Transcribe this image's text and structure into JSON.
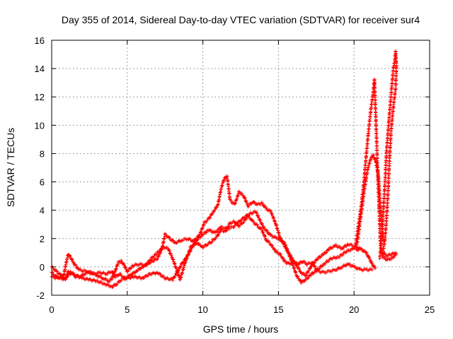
{
  "chart_data": {
    "type": "scatter",
    "title": "Day 355 of 2014, Sidereal Day-to-day VTEC variation (SDTVAR) for receiver sur4",
    "xlabel": "GPS time / hours",
    "ylabel": "SDTVAR / TECUs",
    "xlim": [
      0,
      25
    ],
    "ylim": [
      -2,
      16
    ],
    "xticks": [
      0,
      5,
      10,
      15,
      20,
      25
    ],
    "yticks": [
      -2,
      0,
      2,
      4,
      6,
      8,
      10,
      12,
      14,
      16
    ],
    "grid": true,
    "marker": "+",
    "color": "#ff0000",
    "series": [
      {
        "name": "sur4",
        "tracks": [
          [
            [
              0,
              0.0
            ],
            [
              0.3,
              -0.3
            ],
            [
              0.6,
              -0.6
            ],
            [
              0.8,
              -0.8
            ],
            [
              1.0,
              -0.7
            ],
            [
              1.3,
              -0.4
            ],
            [
              1.6,
              -0.6
            ],
            [
              2.0,
              -0.8
            ],
            [
              2.5,
              -0.9
            ],
            [
              3.0,
              -1.0
            ],
            [
              3.5,
              -1.2
            ],
            [
              4.0,
              -1.4
            ],
            [
              4.3,
              -1.2
            ],
            [
              4.6,
              -0.9
            ],
            [
              5.0,
              -0.8
            ],
            [
              5.5,
              -0.7
            ],
            [
              6.0,
              -0.8
            ],
            [
              6.5,
              -0.5
            ],
            [
              7.0,
              -0.4
            ],
            [
              7.5,
              -0.8
            ],
            [
              8.0,
              -0.9
            ],
            [
              8.3,
              -0.4
            ],
            [
              8.6,
              0.2
            ],
            [
              9.0,
              0.8
            ],
            [
              9.3,
              1.4
            ],
            [
              9.6,
              1.9
            ],
            [
              10.0,
              2.3
            ],
            [
              10.4,
              2.6
            ],
            [
              10.8,
              2.4
            ],
            [
              11.2,
              2.8
            ],
            [
              11.6,
              2.7
            ],
            [
              12.0,
              2.8
            ],
            [
              12.5,
              3.3
            ],
            [
              13.0,
              3.7
            ],
            [
              13.5,
              3.9
            ],
            [
              14.0,
              2.8
            ],
            [
              14.5,
              2.2
            ],
            [
              15.0,
              2.0
            ],
            [
              15.4,
              1.7
            ],
            [
              15.8,
              0.6
            ],
            [
              16.2,
              -0.6
            ],
            [
              16.5,
              -1.1
            ],
            [
              16.8,
              -0.9
            ],
            [
              17.2,
              -0.5
            ],
            [
              17.6,
              -0.2
            ],
            [
              18.0,
              0.2
            ],
            [
              18.5,
              0.6
            ],
            [
              19.0,
              0.7
            ],
            [
              19.5,
              1.1
            ],
            [
              20.0,
              1.3
            ],
            [
              20.3,
              1.2
            ]
          ],
          [
            [
              0,
              -0.4
            ],
            [
              0.3,
              -0.7
            ],
            [
              0.6,
              -0.8
            ],
            [
              0.9,
              -0.9
            ],
            [
              1.1,
              -0.3
            ],
            [
              1.3,
              -0.4
            ],
            [
              1.6,
              -0.7
            ],
            [
              2.0,
              -0.6
            ],
            [
              2.4,
              -0.4
            ],
            [
              2.8,
              -0.5
            ],
            [
              3.2,
              -0.4
            ],
            [
              3.6,
              -0.5
            ],
            [
              4.0,
              -0.3
            ],
            [
              4.2,
              -0.7
            ],
            [
              4.5,
              -0.5
            ],
            [
              4.8,
              -0.8
            ],
            [
              5.2,
              -0.6
            ],
            [
              5.6,
              -0.3
            ],
            [
              6.0,
              0.0
            ],
            [
              6.5,
              0.3
            ],
            [
              7.0,
              0.6
            ],
            [
              7.3,
              1.3
            ],
            [
              7.5,
              2.3
            ],
            [
              7.8,
              2.0
            ],
            [
              8.2,
              1.7
            ],
            [
              8.6,
              1.9
            ],
            [
              9.0,
              2.0
            ],
            [
              9.4,
              1.8
            ],
            [
              9.8,
              2.3
            ],
            [
              10.1,
              3.1
            ],
            [
              10.4,
              3.4
            ],
            [
              10.7,
              3.9
            ],
            [
              11.0,
              4.4
            ],
            [
              11.2,
              5.5
            ],
            [
              11.4,
              6.2
            ],
            [
              11.6,
              6.4
            ],
            [
              11.8,
              4.7
            ],
            [
              12.1,
              4.4
            ],
            [
              12.4,
              5.3
            ],
            [
              12.7,
              5.0
            ],
            [
              13.0,
              4.3
            ],
            [
              13.3,
              4.6
            ],
            [
              13.6,
              4.4
            ],
            [
              13.9,
              4.5
            ],
            [
              14.2,
              4.1
            ],
            [
              14.5,
              3.9
            ],
            [
              14.8,
              3.1
            ],
            [
              15.1,
              2.1
            ],
            [
              15.3,
              1.7
            ],
            [
              15.6,
              1.1
            ],
            [
              15.9,
              0.6
            ],
            [
              16.2,
              0.1
            ],
            [
              16.5,
              -0.4
            ],
            [
              16.8,
              -0.6
            ],
            [
              17.2,
              0.1
            ],
            [
              17.6,
              0.6
            ],
            [
              18.0,
              0.9
            ],
            [
              18.4,
              1.3
            ],
            [
              18.8,
              1.5
            ],
            [
              19.2,
              1.3
            ],
            [
              19.6,
              1.6
            ],
            [
              20.0,
              1.5
            ],
            [
              20.4,
              1.3
            ],
            [
              20.8,
              1.0
            ],
            [
              21.0,
              0.6
            ],
            [
              21.2,
              0.2
            ],
            [
              21.4,
              -0.1
            ]
          ],
          [
            [
              0,
              -0.7
            ],
            [
              0.4,
              -0.8
            ],
            [
              0.8,
              -0.6
            ],
            [
              1.0,
              0.5
            ],
            [
              1.1,
              0.9
            ],
            [
              1.3,
              0.6
            ],
            [
              1.5,
              0.2
            ],
            [
              1.8,
              -0.2
            ],
            [
              2.2,
              -0.3
            ],
            [
              2.6,
              -0.4
            ],
            [
              3.0,
              -0.6
            ],
            [
              3.4,
              -0.8
            ],
            [
              3.8,
              -1.0
            ],
            [
              4.0,
              -0.8
            ],
            [
              4.2,
              -0.3
            ],
            [
              4.4,
              0.3
            ],
            [
              4.6,
              0.4
            ],
            [
              4.8,
              0.1
            ],
            [
              5.0,
              -0.3
            ],
            [
              5.4,
              0.1
            ],
            [
              5.8,
              0.2
            ],
            [
              6.2,
              0.1
            ],
            [
              6.6,
              0.6
            ],
            [
              7.0,
              1.0
            ],
            [
              7.4,
              1.4
            ],
            [
              7.7,
              1.3
            ],
            [
              8.0,
              0.6
            ],
            [
              8.3,
              -0.3
            ],
            [
              8.5,
              -0.9
            ],
            [
              8.8,
              0.2
            ],
            [
              9.2,
              1.4
            ],
            [
              9.6,
              1.7
            ],
            [
              10.0,
              1.4
            ],
            [
              10.3,
              1.6
            ],
            [
              10.6,
              1.8
            ],
            [
              10.9,
              2.1
            ],
            [
              11.2,
              2.6
            ],
            [
              11.5,
              2.5
            ],
            [
              11.8,
              3.1
            ],
            [
              12.1,
              3.2
            ],
            [
              12.4,
              2.9
            ],
            [
              12.7,
              3.2
            ],
            [
              13.0,
              3.6
            ],
            [
              13.3,
              3.2
            ],
            [
              13.6,
              2.9
            ],
            [
              13.9,
              2.6
            ],
            [
              14.2,
              1.9
            ],
            [
              14.5,
              1.6
            ],
            [
              14.8,
              1.1
            ],
            [
              15.1,
              0.9
            ],
            [
              15.4,
              0.4
            ],
            [
              15.7,
              0.2
            ],
            [
              16.0,
              0.3
            ],
            [
              16.3,
              0.2
            ],
            [
              16.6,
              0.4
            ],
            [
              16.9,
              0.2
            ],
            [
              17.2,
              0.3
            ],
            [
              17.6,
              -0.3
            ],
            [
              18.0,
              -0.4
            ],
            [
              18.4,
              -0.3
            ],
            [
              18.8,
              -0.2
            ],
            [
              19.2,
              0.0
            ],
            [
              19.6,
              0.2
            ],
            [
              20.0,
              0.0
            ],
            [
              20.4,
              -0.2
            ],
            [
              20.8,
              -0.2
            ],
            [
              21.2,
              -0.2
            ]
          ],
          [
            [
              20.1,
              1.5
            ],
            [
              20.3,
              3.0
            ],
            [
              20.5,
              4.5
            ],
            [
              20.65,
              6.0
            ],
            [
              20.8,
              7.8
            ],
            [
              20.95,
              9.5
            ],
            [
              21.1,
              11.0
            ],
            [
              21.25,
              12.2
            ],
            [
              21.35,
              13.2
            ],
            [
              21.45,
              10.2
            ],
            [
              21.55,
              7.2
            ],
            [
              21.65,
              4.3
            ],
            [
              21.75,
              1.6
            ],
            [
              21.9,
              0.7
            ],
            [
              22.2,
              0.5
            ],
            [
              22.5,
              0.6
            ],
            [
              22.8,
              0.9
            ]
          ],
          [
            [
              20.2,
              1.6
            ],
            [
              20.35,
              2.8
            ],
            [
              20.5,
              4.0
            ],
            [
              20.65,
              5.2
            ],
            [
              20.8,
              6.3
            ],
            [
              20.95,
              7.1
            ],
            [
              21.1,
              7.6
            ],
            [
              21.25,
              7.9
            ],
            [
              21.45,
              7.4
            ],
            [
              21.6,
              6.5
            ],
            [
              21.7,
              5.0
            ],
            [
              21.8,
              3.4
            ],
            [
              21.9,
              2.2
            ],
            [
              22.0,
              1.6
            ]
          ],
          [
            [
              21.7,
              0.6
            ],
            [
              21.85,
              2.3
            ],
            [
              21.95,
              4.2
            ],
            [
              22.05,
              6.0
            ],
            [
              22.15,
              8.2
            ],
            [
              22.3,
              10.3
            ],
            [
              22.4,
              11.5
            ],
            [
              22.5,
              12.8
            ],
            [
              22.6,
              14.0
            ],
            [
              22.7,
              14.6
            ],
            [
              22.75,
              15.2
            ],
            [
              22.8,
              14.2
            ],
            [
              22.75,
              12.6
            ],
            [
              22.6,
              11.3
            ],
            [
              22.45,
              9.6
            ],
            [
              22.35,
              7.7
            ],
            [
              22.25,
              5.3
            ],
            [
              22.15,
              3.4
            ],
            [
              22.05,
              2.0
            ],
            [
              21.9,
              1.0
            ],
            [
              22.2,
              0.8
            ],
            [
              22.5,
              0.9
            ],
            [
              22.75,
              1.0
            ]
          ]
        ]
      }
    ]
  }
}
